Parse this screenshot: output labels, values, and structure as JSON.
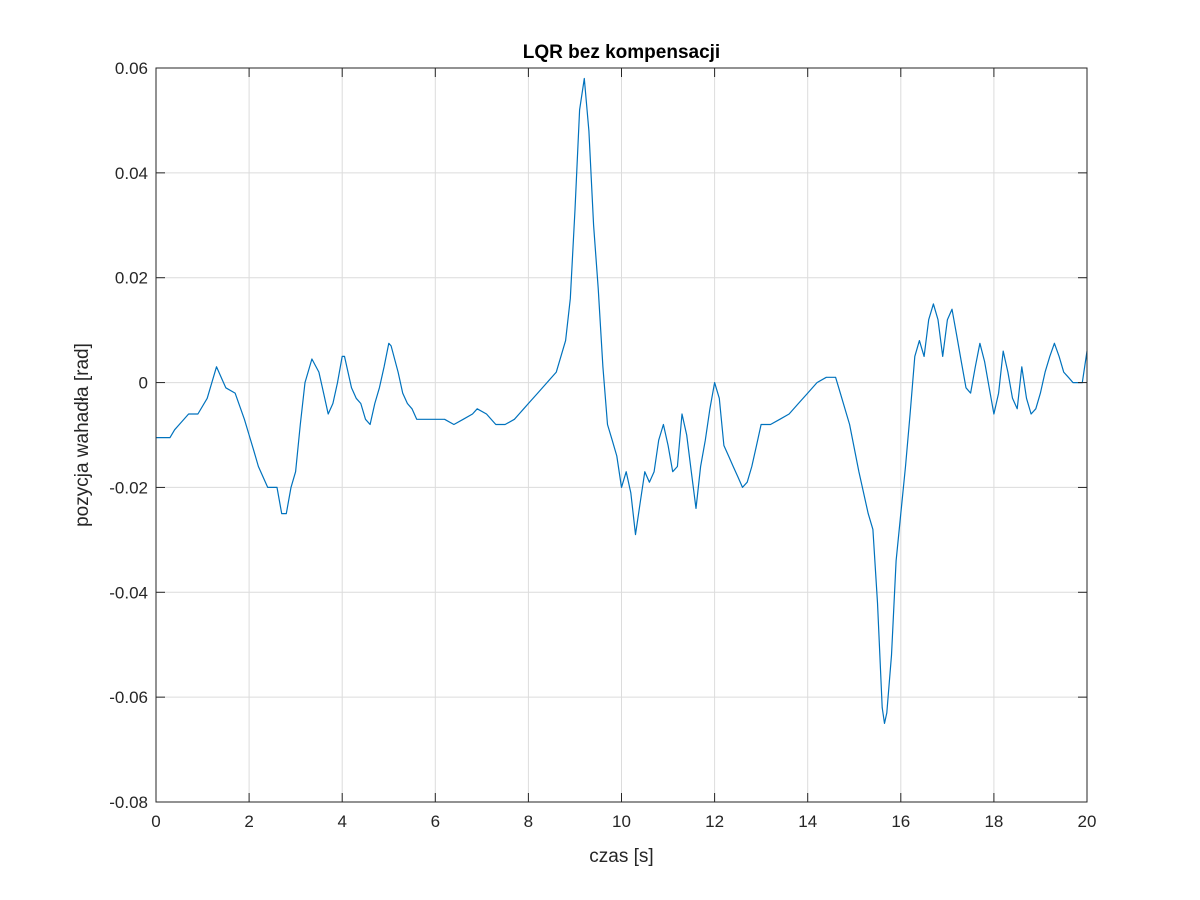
{
  "chart_data": {
    "type": "line",
    "title": "LQR bez kompensacji",
    "xlabel": "czas [s]",
    "ylabel": "pozycja wahadła [rad]",
    "xlim": [
      0,
      20
    ],
    "ylim": [
      -0.08,
      0.06
    ],
    "xticks": [
      0,
      2,
      4,
      6,
      8,
      10,
      12,
      14,
      16,
      18,
      20
    ],
    "yticks": [
      -0.08,
      -0.06,
      -0.04,
      -0.02,
      0,
      0.02,
      0.04,
      0.06
    ],
    "xtick_labels": [
      "0",
      "2",
      "4",
      "6",
      "8",
      "10",
      "12",
      "14",
      "16",
      "18",
      "20"
    ],
    "ytick_labels": [
      "-0.08",
      "-0.06",
      "-0.04",
      "-0.02",
      "0",
      "0.02",
      "0.04",
      "0.06"
    ],
    "grid": true,
    "line_color": "#0072BD",
    "axes_color": "#262626",
    "grid_color": "#dcdcdc",
    "x": [
      0,
      0.3,
      0.4,
      0.5,
      0.7,
      0.9,
      1.1,
      1.3,
      1.5,
      1.7,
      1.9,
      2.0,
      2.1,
      2.2,
      2.4,
      2.6,
      2.7,
      2.8,
      2.9,
      3.0,
      3.1,
      3.2,
      3.35,
      3.5,
      3.6,
      3.7,
      3.8,
      3.9,
      4.0,
      4.05,
      4.2,
      4.3,
      4.4,
      4.5,
      4.6,
      4.7,
      4.8,
      4.9,
      5.0,
      5.05,
      5.2,
      5.3,
      5.4,
      5.5,
      5.6,
      5.8,
      6.0,
      6.2,
      6.4,
      6.6,
      6.8,
      6.9,
      7.1,
      7.3,
      7.5,
      7.7,
      7.8,
      7.9,
      8.0,
      8.2,
      8.4,
      8.6,
      8.8,
      8.9,
      9.0,
      9.1,
      9.2,
      9.3,
      9.4,
      9.5,
      9.6,
      9.7,
      9.8,
      9.9,
      10.0,
      10.1,
      10.2,
      10.3,
      10.4,
      10.5,
      10.6,
      10.7,
      10.8,
      10.9,
      11.0,
      11.1,
      11.2,
      11.3,
      11.4,
      11.5,
      11.6,
      11.7,
      11.8,
      11.9,
      12.0,
      12.1,
      12.2,
      12.3,
      12.4,
      12.5,
      12.6,
      12.7,
      12.8,
      12.9,
      13.0,
      13.2,
      13.4,
      13.6,
      13.8,
      14.0,
      14.2,
      14.4,
      14.6,
      14.7,
      14.9,
      15.1,
      15.3,
      15.4,
      15.5,
      15.6,
      15.65,
      15.7,
      15.8,
      15.9,
      16.0,
      16.1,
      16.2,
      16.3,
      16.4,
      16.5,
      16.6,
      16.7,
      16.8,
      16.9,
      17.0,
      17.1,
      17.2,
      17.3,
      17.4,
      17.5,
      17.6,
      17.7,
      17.8,
      17.9,
      18.0,
      18.1,
      18.2,
      18.3,
      18.4,
      18.5,
      18.6,
      18.7,
      18.8,
      18.9,
      19.0,
      19.1,
      19.2,
      19.3,
      19.4,
      19.5,
      19.6,
      19.7,
      19.8,
      19.9,
      20.0
    ],
    "y": [
      -0.0105,
      -0.0105,
      -0.009,
      -0.008,
      -0.006,
      -0.006,
      -0.003,
      0.003,
      -0.001,
      -0.002,
      -0.007,
      -0.01,
      -0.013,
      -0.016,
      -0.02,
      -0.02,
      -0.025,
      -0.025,
      -0.02,
      -0.017,
      -0.008,
      0.0,
      0.0045,
      0.002,
      -0.002,
      -0.006,
      -0.004,
      0.0,
      0.005,
      0.005,
      -0.001,
      -0.003,
      -0.004,
      -0.007,
      -0.008,
      -0.004,
      -0.001,
      0.003,
      0.0075,
      0.007,
      0.002,
      -0.002,
      -0.004,
      -0.005,
      -0.007,
      -0.007,
      -0.007,
      -0.007,
      -0.008,
      -0.007,
      -0.006,
      -0.005,
      -0.006,
      -0.008,
      -0.008,
      -0.007,
      -0.006,
      -0.005,
      -0.004,
      -0.002,
      0.0,
      0.002,
      0.008,
      0.016,
      0.033,
      0.052,
      0.058,
      0.048,
      0.03,
      0.018,
      0.003,
      -0.008,
      -0.011,
      -0.014,
      -0.02,
      -0.017,
      -0.021,
      -0.029,
      -0.023,
      -0.017,
      -0.019,
      -0.017,
      -0.011,
      -0.008,
      -0.012,
      -0.017,
      -0.016,
      -0.006,
      -0.01,
      -0.017,
      -0.024,
      -0.016,
      -0.011,
      -0.005,
      0.0,
      -0.003,
      -0.012,
      -0.014,
      -0.016,
      -0.018,
      -0.02,
      -0.019,
      -0.016,
      -0.012,
      -0.008,
      -0.008,
      -0.007,
      -0.006,
      -0.004,
      -0.002,
      0.0,
      0.001,
      0.001,
      -0.002,
      -0.008,
      -0.017,
      -0.025,
      -0.028,
      -0.042,
      -0.062,
      -0.065,
      -0.063,
      -0.052,
      -0.034,
      -0.025,
      -0.016,
      -0.006,
      0.005,
      0.008,
      0.005,
      0.012,
      0.015,
      0.012,
      0.005,
      0.012,
      0.014,
      0.009,
      0.004,
      -0.001,
      -0.002,
      0.003,
      0.0075,
      0.004,
      -0.001,
      -0.006,
      -0.002,
      0.006,
      0.002,
      -0.003,
      -0.005,
      0.003,
      -0.003,
      -0.006,
      -0.005,
      -0.002,
      0.002,
      0.005,
      0.0075,
      0.005,
      0.002,
      0.001,
      0.0,
      0.0,
      0.0,
      0.006
    ]
  }
}
